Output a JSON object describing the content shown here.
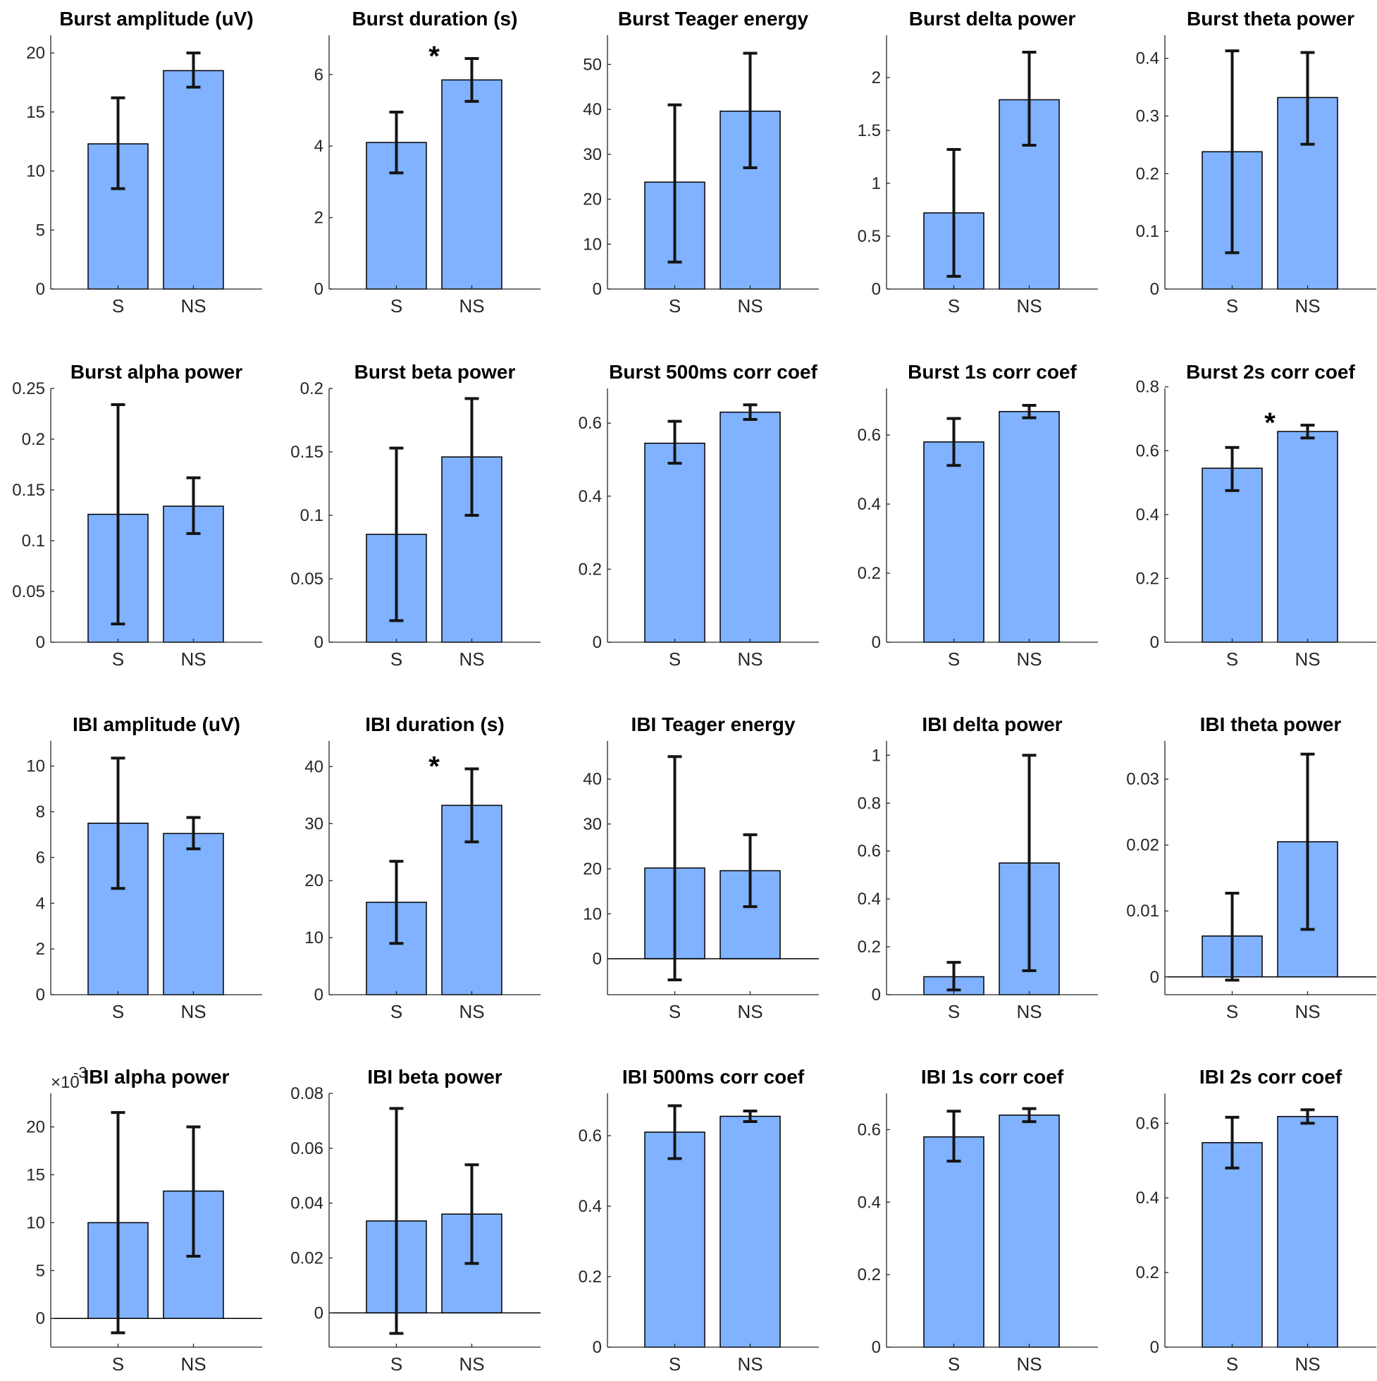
{
  "chart_data": [
    {
      "type": "bar",
      "title": "Burst amplitude (uV)",
      "categories": [
        "S",
        "NS"
      ],
      "values": [
        12.3,
        18.5
      ],
      "err_low": [
        8.5,
        17.1
      ],
      "err_high": [
        16.2,
        20.0
      ],
      "ylim": [
        0,
        21.5
      ],
      "yticks": [
        0,
        5,
        10,
        15,
        20
      ],
      "yticklabels": [
        "0",
        "5",
        "10",
        "15",
        "20"
      ],
      "significant": false
    },
    {
      "type": "bar",
      "title": "Burst duration (s)",
      "categories": [
        "S",
        "NS"
      ],
      "values": [
        4.1,
        5.85
      ],
      "err_low": [
        3.25,
        5.25
      ],
      "err_high": [
        4.95,
        6.45
      ],
      "ylim": [
        0,
        7.1
      ],
      "yticks": [
        0,
        2,
        4,
        6
      ],
      "yticklabels": [
        "0",
        "2",
        "4",
        "6"
      ],
      "significant": true,
      "significance_marker": "*"
    },
    {
      "type": "bar",
      "title": "Burst Teager energy",
      "categories": [
        "S",
        "NS"
      ],
      "values": [
        23.8,
        39.6
      ],
      "err_low": [
        6.0,
        27.0
      ],
      "err_high": [
        41.0,
        52.5
      ],
      "ylim": [
        0,
        56.5
      ],
      "yticks": [
        0,
        10,
        20,
        30,
        40,
        50
      ],
      "yticklabels": [
        "0",
        "10",
        "20",
        "30",
        "40",
        "50"
      ],
      "significant": false
    },
    {
      "type": "bar",
      "title": "Burst delta power",
      "categories": [
        "S",
        "NS"
      ],
      "values": [
        0.72,
        1.79
      ],
      "err_low": [
        0.12,
        1.36
      ],
      "err_high": [
        1.32,
        2.24
      ],
      "ylim": [
        0,
        2.4
      ],
      "yticks": [
        0,
        0.5,
        1,
        1.5,
        2
      ],
      "yticklabels": [
        "0",
        "0.5",
        "1",
        "1.5",
        "2"
      ],
      "significant": false
    },
    {
      "type": "bar",
      "title": "Burst theta power",
      "categories": [
        "S",
        "NS"
      ],
      "values": [
        0.238,
        0.332
      ],
      "err_low": [
        0.063,
        0.251
      ],
      "err_high": [
        0.413,
        0.41
      ],
      "ylim": [
        0,
        0.44
      ],
      "yticks": [
        0,
        0.1,
        0.2,
        0.3,
        0.4
      ],
      "yticklabels": [
        "0",
        "0.1",
        "0.2",
        "0.3",
        "0.4"
      ],
      "significant": false
    },
    {
      "type": "bar",
      "title": "Burst alpha power",
      "categories": [
        "S",
        "NS"
      ],
      "values": [
        0.126,
        0.134
      ],
      "err_low": [
        0.018,
        0.107
      ],
      "err_high": [
        0.234,
        0.162
      ],
      "ylim": [
        0,
        0.25
      ],
      "yticks": [
        0,
        0.05,
        0.1,
        0.15,
        0.2,
        0.25
      ],
      "yticklabels": [
        "0",
        "0.05",
        "0.1",
        "0.15",
        "0.2",
        "0.25"
      ],
      "significant": false
    },
    {
      "type": "bar",
      "title": "Burst beta power",
      "categories": [
        "S",
        "NS"
      ],
      "values": [
        0.085,
        0.146
      ],
      "err_low": [
        0.017,
        0.1
      ],
      "err_high": [
        0.153,
        0.192
      ],
      "ylim": [
        0,
        0.2
      ],
      "yticks": [
        0,
        0.05,
        0.1,
        0.15,
        0.2
      ],
      "yticklabels": [
        "0",
        "0.05",
        "0.1",
        "0.15",
        "0.2"
      ],
      "significant": false
    },
    {
      "type": "bar",
      "title": "Burst 500ms corr coef",
      "categories": [
        "S",
        "NS"
      ],
      "values": [
        0.545,
        0.63
      ],
      "err_low": [
        0.49,
        0.61
      ],
      "err_high": [
        0.605,
        0.65
      ],
      "ylim": [
        0,
        0.695
      ],
      "yticks": [
        0,
        0.2,
        0.4,
        0.6
      ],
      "yticklabels": [
        "0",
        "0.2",
        "0.4",
        "0.6"
      ],
      "significant": false
    },
    {
      "type": "bar",
      "title": "Burst 1s corr coef",
      "categories": [
        "S",
        "NS"
      ],
      "values": [
        0.58,
        0.668
      ],
      "err_low": [
        0.512,
        0.65
      ],
      "err_high": [
        0.648,
        0.686
      ],
      "ylim": [
        0,
        0.735
      ],
      "yticks": [
        0,
        0.2,
        0.4,
        0.6
      ],
      "yticklabels": [
        "0",
        "0.2",
        "0.4",
        "0.6"
      ],
      "significant": false
    },
    {
      "type": "bar",
      "title": "Burst 2s corr coef",
      "categories": [
        "S",
        "NS"
      ],
      "values": [
        0.545,
        0.66
      ],
      "err_low": [
        0.475,
        0.64
      ],
      "err_high": [
        0.61,
        0.68
      ],
      "ylim": [
        0,
        0.795
      ],
      "yticks": [
        0,
        0.2,
        0.4,
        0.6,
        0.8
      ],
      "yticklabels": [
        "0",
        "0.2",
        "0.4",
        "0.6",
        "0.8"
      ],
      "significant": true,
      "significance_marker": "*"
    },
    {
      "type": "bar",
      "title": "IBI amplitude (uV)",
      "categories": [
        "S",
        "NS"
      ],
      "values": [
        7.5,
        7.05
      ],
      "err_low": [
        4.65,
        6.38
      ],
      "err_high": [
        10.35,
        7.75
      ],
      "ylim": [
        0,
        11.1
      ],
      "yticks": [
        0,
        2,
        4,
        6,
        8,
        10
      ],
      "yticklabels": [
        "0",
        "2",
        "4",
        "6",
        "8",
        "10"
      ],
      "significant": false
    },
    {
      "type": "bar",
      "title": "IBI duration (s)",
      "categories": [
        "S",
        "NS"
      ],
      "values": [
        16.2,
        33.2
      ],
      "err_low": [
        9.0,
        26.8
      ],
      "err_high": [
        23.4,
        39.6
      ],
      "ylim": [
        0,
        44.5
      ],
      "yticks": [
        0,
        10,
        20,
        30,
        40
      ],
      "yticklabels": [
        "0",
        "10",
        "20",
        "30",
        "40"
      ],
      "significant": true,
      "significance_marker": "*"
    },
    {
      "type": "bar",
      "title": "IBI Teager energy",
      "categories": [
        "S",
        "NS"
      ],
      "values": [
        20.2,
        19.6
      ],
      "err_low": [
        -4.7,
        11.6
      ],
      "err_high": [
        45.0,
        27.6
      ],
      "ylim": [
        -8,
        48.5
      ],
      "yticks": [
        0,
        10,
        20,
        30,
        40
      ],
      "yticklabels": [
        "0",
        "10",
        "20",
        "30",
        "40"
      ],
      "significant": false
    },
    {
      "type": "bar",
      "title": "IBI delta power",
      "categories": [
        "S",
        "NS"
      ],
      "values": [
        0.075,
        0.55
      ],
      "err_low": [
        0.02,
        0.1
      ],
      "err_high": [
        0.135,
        1.0
      ],
      "ylim": [
        0,
        1.06
      ],
      "yticks": [
        0,
        0.2,
        0.4,
        0.6,
        0.8,
        1
      ],
      "yticklabels": [
        "0",
        "0.2",
        "0.4",
        "0.6",
        "0.8",
        "1"
      ],
      "significant": false
    },
    {
      "type": "bar",
      "title": "IBI theta power",
      "categories": [
        "S",
        "NS"
      ],
      "values": [
        0.0062,
        0.0205
      ],
      "err_low": [
        -0.0005,
        0.0072
      ],
      "err_high": [
        0.0127,
        0.0338
      ],
      "ylim": [
        -0.0027,
        0.0358
      ],
      "yticks": [
        0,
        0.01,
        0.02,
        0.03
      ],
      "yticklabels": [
        "0",
        "0.01",
        "0.02",
        "0.03"
      ],
      "significant": false
    },
    {
      "type": "bar",
      "title": "IBI alpha power",
      "categories": [
        "S",
        "NS"
      ],
      "values": [
        10.0,
        13.3
      ],
      "err_low": [
        -1.5,
        6.5
      ],
      "err_high": [
        21.5,
        20.0
      ],
      "ylim": [
        -3,
        23.5
      ],
      "yticks": [
        0,
        5,
        10,
        15,
        20
      ],
      "yticklabels": [
        "0",
        "5",
        "10",
        "15",
        "20"
      ],
      "yaxis_multiplier": "×10",
      "yaxis_exponent": "-3",
      "significant": false
    },
    {
      "type": "bar",
      "title": "IBI beta power",
      "categories": [
        "S",
        "NS"
      ],
      "values": [
        0.0335,
        0.036
      ],
      "err_low": [
        -0.0075,
        0.018
      ],
      "err_high": [
        0.0745,
        0.054
      ],
      "ylim": [
        -0.0125,
        0.08
      ],
      "yticks": [
        0,
        0.02,
        0.04,
        0.06,
        0.08
      ],
      "yticklabels": [
        "0",
        "0.02",
        "0.04",
        "0.06",
        "0.08"
      ],
      "significant": false
    },
    {
      "type": "bar",
      "title": "IBI 500ms corr coef",
      "categories": [
        "S",
        "NS"
      ],
      "values": [
        0.61,
        0.655
      ],
      "err_low": [
        0.535,
        0.64
      ],
      "err_high": [
        0.685,
        0.67
      ],
      "ylim": [
        0,
        0.72
      ],
      "yticks": [
        0,
        0.2,
        0.4,
        0.6
      ],
      "yticklabels": [
        "0",
        "0.2",
        "0.4",
        "0.6"
      ],
      "significant": false
    },
    {
      "type": "bar",
      "title": "IBI 1s corr coef",
      "categories": [
        "S",
        "NS"
      ],
      "values": [
        0.58,
        0.64
      ],
      "err_low": [
        0.513,
        0.622
      ],
      "err_high": [
        0.651,
        0.658
      ],
      "ylim": [
        0,
        0.7
      ],
      "yticks": [
        0,
        0.2,
        0.4,
        0.6
      ],
      "yticklabels": [
        "0",
        "0.2",
        "0.4",
        "0.6"
      ],
      "significant": false
    },
    {
      "type": "bar",
      "title": "IBI 2s corr coef",
      "categories": [
        "S",
        "NS"
      ],
      "values": [
        0.548,
        0.618
      ],
      "err_low": [
        0.48,
        0.6
      ],
      "err_high": [
        0.616,
        0.636
      ],
      "ylim": [
        0,
        0.68
      ],
      "yticks": [
        0,
        0.2,
        0.4,
        0.6
      ],
      "yticklabels": [
        "0",
        "0.2",
        "0.4",
        "0.6"
      ],
      "significant": false
    }
  ],
  "colors": {
    "bar_fill": "#80b2ff",
    "bar_edge": "#000000",
    "errorbar": "#141414",
    "axis": "#262626"
  }
}
